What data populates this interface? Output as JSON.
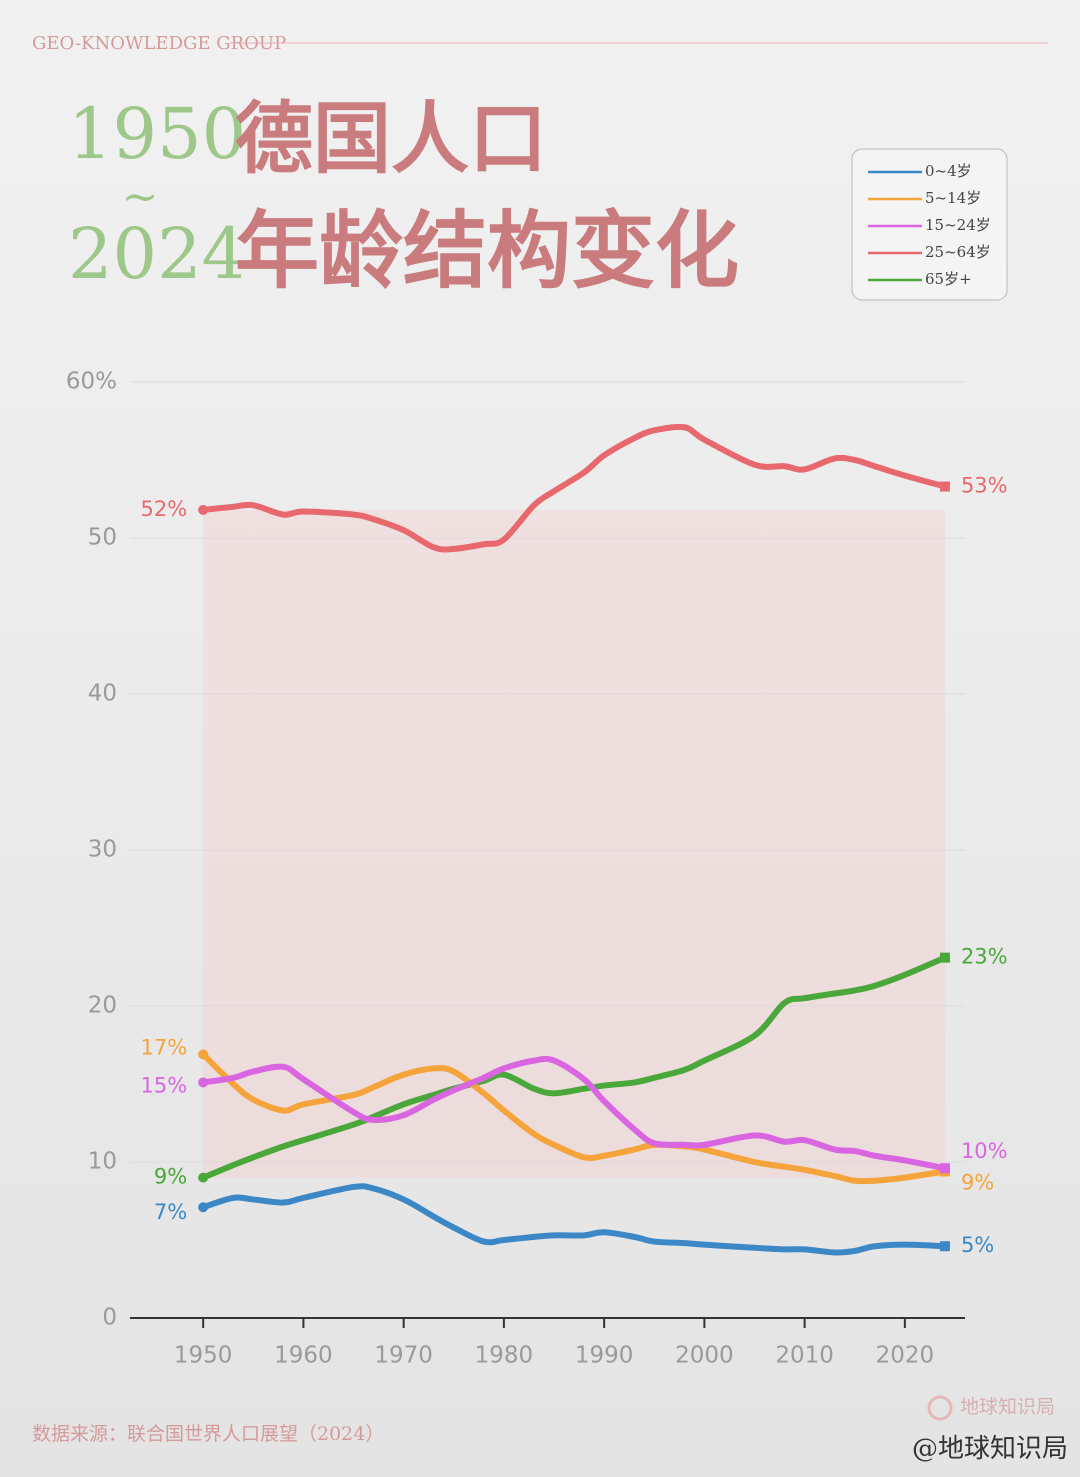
{
  "brand": "GEO-KNOWLEDGE GROUP",
  "title": {
    "year_start": "1950",
    "tilde": "~",
    "year_end": "2024",
    "line1": "德国人口",
    "line2": "年龄结构变化"
  },
  "source": "数据来源：联合国世界人口展望（2024）",
  "watermark": "地球知识局",
  "credit": "@地球知识局",
  "chart_data": {
    "type": "line",
    "x": [
      1950,
      1953,
      1955,
      1958,
      1960,
      1965,
      1967,
      1970,
      1973,
      1975,
      1978,
      1980,
      1983,
      1985,
      1988,
      1990,
      1993,
      1995,
      1998,
      2000,
      2005,
      2008,
      2010,
      2013,
      2015,
      2017,
      2020,
      2024
    ],
    "xlim": [
      1942.7,
      2026
    ],
    "xticks": [
      1950,
      1960,
      1970,
      1980,
      1990,
      2000,
      2010,
      2020
    ],
    "ylim": [
      0,
      60
    ],
    "yticks": [
      0,
      10,
      20,
      30,
      40,
      50,
      {
        "value": 60,
        "label": "60%"
      }
    ],
    "grid": true,
    "legend": "top-right",
    "series": [
      {
        "name": "0~4岁",
        "color": "#3c88c6",
        "values": [
          7.1,
          7.7,
          7.6,
          7.4,
          7.7,
          8.4,
          8.3,
          7.6,
          6.5,
          5.8,
          4.9,
          5.0,
          5.2,
          5.3,
          5.3,
          5.5,
          5.2,
          4.9,
          4.8,
          4.7,
          4.5,
          4.4,
          4.4,
          4.2,
          4.3,
          4.6,
          4.7,
          4.6
        ],
        "value_labels": [
          "7%",
          null,
          null,
          null,
          null,
          null,
          null,
          null,
          null,
          null,
          null,
          null,
          null,
          null,
          null,
          null,
          null,
          null,
          null,
          null,
          null,
          null,
          null,
          null,
          null,
          null,
          null,
          "5%"
        ]
      },
      {
        "name": "5~14岁",
        "color": "#f5a43c",
        "values": [
          16.9,
          15.0,
          14.0,
          13.3,
          13.7,
          14.3,
          14.8,
          15.6,
          16.0,
          15.8,
          14.4,
          13.3,
          11.8,
          11.1,
          10.3,
          10.4,
          10.8,
          11.1,
          11.0,
          10.8,
          10.0,
          9.7,
          9.5,
          9.1,
          8.8,
          8.8,
          9.0,
          9.4
        ],
        "value_labels": [
          "17%",
          null,
          null,
          null,
          null,
          null,
          null,
          null,
          null,
          null,
          null,
          null,
          null,
          null,
          null,
          null,
          null,
          null,
          null,
          null,
          null,
          null,
          null,
          null,
          null,
          null,
          null,
          "9%"
        ]
      },
      {
        "name": "15~24岁",
        "color": "#d966e0",
        "values": [
          15.1,
          15.4,
          15.8,
          16.1,
          15.3,
          13.2,
          12.7,
          13.0,
          14.0,
          14.6,
          15.4,
          16.0,
          16.5,
          16.5,
          15.3,
          13.9,
          12.1,
          11.2,
          11.1,
          11.1,
          11.7,
          11.3,
          11.4,
          10.8,
          10.7,
          10.4,
          10.1,
          9.6
        ],
        "value_labels": [
          "15%",
          null,
          null,
          null,
          null,
          null,
          null,
          null,
          null,
          null,
          null,
          null,
          null,
          null,
          null,
          null,
          null,
          null,
          null,
          null,
          null,
          null,
          null,
          null,
          null,
          null,
          null,
          "10%"
        ]
      },
      {
        "name": "25~64岁",
        "color": "#e8696d",
        "values": [
          51.8,
          52.0,
          52.1,
          51.5,
          51.7,
          51.5,
          51.2,
          50.5,
          49.4,
          49.3,
          49.6,
          49.9,
          52.1,
          53.0,
          54.2,
          55.3,
          56.4,
          56.9,
          57.1,
          56.3,
          54.7,
          54.6,
          54.4,
          55.1,
          55.0,
          54.6,
          54.0,
          53.3
        ],
        "value_labels": [
          "52%",
          null,
          null,
          null,
          null,
          null,
          null,
          null,
          null,
          null,
          null,
          null,
          null,
          null,
          null,
          null,
          null,
          null,
          null,
          null,
          null,
          null,
          null,
          null,
          null,
          null,
          null,
          "53%"
        ]
      },
      {
        "name": "65岁+",
        "color": "#4aa83a",
        "values": [
          9.0,
          9.8,
          10.3,
          11.0,
          11.4,
          12.4,
          12.9,
          13.7,
          14.3,
          14.7,
          15.2,
          15.6,
          14.7,
          14.4,
          14.7,
          14.9,
          15.1,
          15.4,
          15.9,
          16.5,
          18.1,
          20.2,
          20.5,
          20.8,
          21.0,
          21.3,
          22.0,
          23.1
        ],
        "value_labels": [
          "9%",
          null,
          null,
          null,
          null,
          null,
          null,
          null,
          null,
          null,
          null,
          null,
          null,
          null,
          null,
          null,
          null,
          null,
          null,
          null,
          null,
          null,
          null,
          null,
          null,
          null,
          null,
          "23%"
        ]
      }
    ]
  }
}
